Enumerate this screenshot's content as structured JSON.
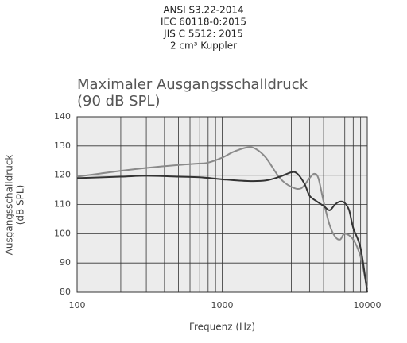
{
  "chart_data": {
    "type": "line",
    "header": [
      "ANSI S3.22-2014",
      "IEC 60118-0:2015",
      "JIS C 5512: 2015",
      "2 cm³ Kuppler"
    ],
    "title": [
      "Maximaler Ausgangsschalldruck",
      "(90 dB SPL)"
    ],
    "y_label": [
      "Ausgangsschalldruck",
      "(dB SPL)"
    ],
    "x_label": "Frequenz (Hz)",
    "log_x": true,
    "grid": true,
    "xlim": [
      100,
      10000
    ],
    "xticks": [
      100,
      1000,
      10000
    ],
    "ylim": [
      80,
      140
    ],
    "yticks": [
      80,
      90,
      100,
      110,
      120,
      130,
      140
    ],
    "series": [
      {
        "color": "#8a8a8a",
        "x": [
          100,
          200,
          300,
          500,
          700,
          800,
          1000,
          1200,
          1500,
          1700,
          2000,
          2500,
          3000,
          3500,
          4000,
          4300,
          4600,
          5000,
          5500,
          6000,
          6500,
          7000,
          8000,
          9000,
          10000
        ],
        "values": [
          119.5,
          121.5,
          122.5,
          123.5,
          124,
          124.3,
          126,
          128,
          129.5,
          129,
          126,
          119,
          116,
          115.5,
          119,
          120.5,
          119,
          111,
          103,
          99,
          98,
          100,
          98,
          92,
          81
        ]
      },
      {
        "color": "#333333",
        "x": [
          100,
          200,
          300,
          500,
          700,
          1000,
          1500,
          2000,
          2500,
          3000,
          3300,
          3700,
          4000,
          4500,
          5000,
          5500,
          6000,
          6500,
          7000,
          7500,
          8000,
          9000,
          10000
        ],
        "values": [
          119,
          119.5,
          119.8,
          119.5,
          119.3,
          118.6,
          118,
          118.2,
          119.5,
          121,
          120.5,
          117,
          113,
          111,
          109.5,
          108,
          110,
          111,
          110.5,
          108,
          102,
          95,
          80
        ]
      }
    ]
  }
}
